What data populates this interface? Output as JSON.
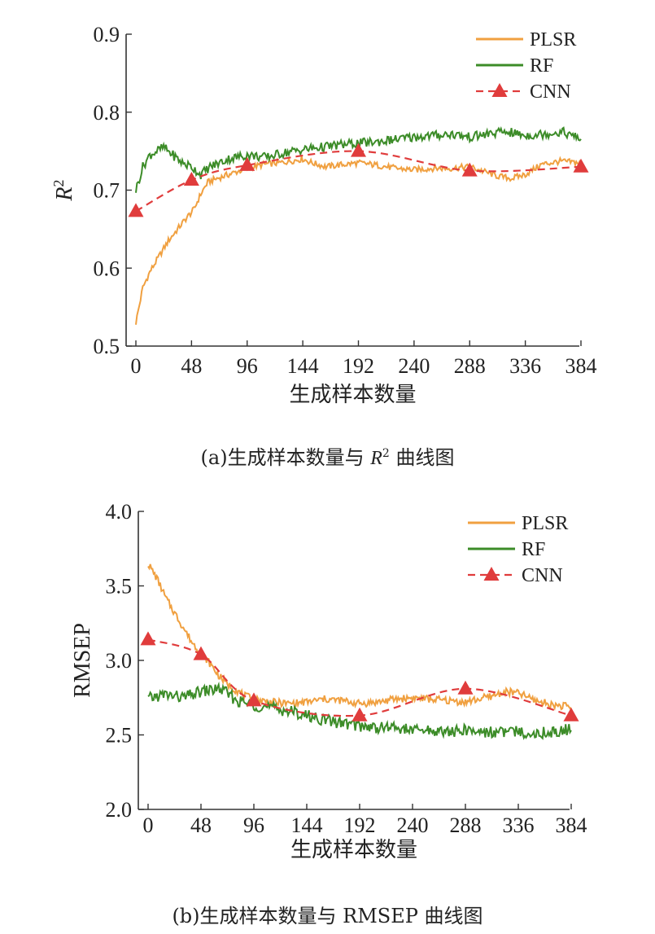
{
  "colors": {
    "PLSR": "#f0a040",
    "RF": "#3c8c28",
    "CNN": "#e03c3c",
    "axis": "#333333"
  },
  "caption_a": {
    "prefix": "(a)生成样本数量与 ",
    "r": "R",
    "sup": "2",
    "suffix": " 曲线图"
  },
  "caption_b": {
    "text": "(b)生成样本数量与 RMSEP 曲线图"
  },
  "chart_data": [
    {
      "type": "line",
      "title": "",
      "xlabel": "生成样本数量",
      "ylabel": "R",
      "ylabel_sup": "2",
      "xlim": [
        0,
        384
      ],
      "ylim": [
        0.5,
        0.9
      ],
      "xticks": [
        0,
        48,
        96,
        144,
        192,
        240,
        288,
        336,
        384
      ],
      "yticks": [
        0.5,
        0.6,
        0.7,
        0.8,
        0.9
      ],
      "ytick_labels": [
        "0.5",
        "0.6",
        "0.7",
        "0.8",
        "0.9"
      ],
      "grid": false,
      "legend": "top-right",
      "series": [
        {
          "name": "PLSR",
          "style": "line",
          "x": [
            0,
            6,
            12,
            20,
            28,
            36,
            44,
            50,
            56,
            62,
            70,
            80,
            96,
            110,
            124,
            136,
            144,
            152,
            164,
            180,
            192,
            208,
            224,
            240,
            256,
            272,
            288,
            300,
            312,
            324,
            336,
            350,
            366,
            384
          ],
          "y": [
            0.53,
            0.575,
            0.595,
            0.615,
            0.635,
            0.65,
            0.665,
            0.675,
            0.695,
            0.71,
            0.715,
            0.72,
            0.728,
            0.733,
            0.735,
            0.738,
            0.74,
            0.735,
            0.73,
            0.733,
            0.735,
            0.732,
            0.728,
            0.726,
            0.728,
            0.728,
            0.73,
            0.724,
            0.718,
            0.715,
            0.72,
            0.733,
            0.737,
            0.735
          ]
        },
        {
          "name": "RF",
          "style": "line",
          "x": [
            0,
            6,
            12,
            18,
            24,
            32,
            40,
            48,
            56,
            64,
            72,
            80,
            96,
            112,
            128,
            144,
            160,
            176,
            192,
            208,
            224,
            240,
            256,
            272,
            288,
            304,
            320,
            336,
            352,
            368,
            384
          ],
          "y": [
            0.7,
            0.73,
            0.745,
            0.75,
            0.755,
            0.745,
            0.735,
            0.73,
            0.72,
            0.73,
            0.735,
            0.74,
            0.745,
            0.742,
            0.748,
            0.752,
            0.755,
            0.758,
            0.76,
            0.762,
            0.765,
            0.768,
            0.77,
            0.772,
            0.768,
            0.772,
            0.775,
            0.77,
            0.772,
            0.775,
            0.765
          ]
        },
        {
          "name": "CNN",
          "style": "dashed-triangle",
          "x": [
            0,
            48,
            96,
            192,
            288,
            384
          ],
          "y": [
            0.673,
            0.713,
            0.732,
            0.75,
            0.725,
            0.73
          ]
        }
      ]
    },
    {
      "type": "line",
      "title": "",
      "xlabel": "生成样本数量",
      "ylabel": "RMSEP",
      "xlim": [
        0,
        384
      ],
      "ylim": [
        2.0,
        4.0
      ],
      "xticks": [
        0,
        48,
        96,
        144,
        192,
        240,
        288,
        336,
        384
      ],
      "yticks": [
        2.0,
        2.5,
        3.0,
        3.5,
        4.0
      ],
      "ytick_labels": [
        "2.0",
        "2.5",
        "3.0",
        "3.5",
        "4.0"
      ],
      "grid": false,
      "legend": "top-right",
      "series": [
        {
          "name": "PLSR",
          "style": "line",
          "x": [
            0,
            8,
            16,
            24,
            32,
            40,
            48,
            56,
            64,
            72,
            80,
            88,
            96,
            112,
            128,
            144,
            160,
            176,
            192,
            208,
            224,
            240,
            256,
            272,
            288,
            300,
            312,
            324,
            336,
            352,
            368,
            384
          ],
          "y": [
            3.65,
            3.55,
            3.42,
            3.32,
            3.22,
            3.12,
            3.05,
            2.98,
            2.9,
            2.84,
            2.8,
            2.76,
            2.74,
            2.72,
            2.71,
            2.72,
            2.74,
            2.73,
            2.71,
            2.72,
            2.74,
            2.75,
            2.74,
            2.73,
            2.72,
            2.74,
            2.76,
            2.79,
            2.78,
            2.73,
            2.7,
            2.69
          ]
        },
        {
          "name": "RF",
          "style": "line",
          "x": [
            0,
            8,
            16,
            24,
            32,
            40,
            48,
            56,
            64,
            72,
            80,
            96,
            112,
            128,
            144,
            160,
            176,
            192,
            208,
            224,
            240,
            256,
            272,
            288,
            304,
            320,
            336,
            352,
            368,
            384
          ],
          "y": [
            2.74,
            2.76,
            2.77,
            2.76,
            2.75,
            2.77,
            2.79,
            2.8,
            2.81,
            2.78,
            2.73,
            2.7,
            2.68,
            2.66,
            2.63,
            2.6,
            2.58,
            2.56,
            2.55,
            2.55,
            2.53,
            2.53,
            2.52,
            2.53,
            2.52,
            2.52,
            2.52,
            2.51,
            2.52,
            2.54
          ]
        },
        {
          "name": "CNN",
          "style": "dashed-triangle",
          "x": [
            0,
            48,
            96,
            192,
            288,
            384
          ],
          "y": [
            3.14,
            3.04,
            2.73,
            2.63,
            2.81,
            2.63
          ]
        }
      ]
    }
  ]
}
